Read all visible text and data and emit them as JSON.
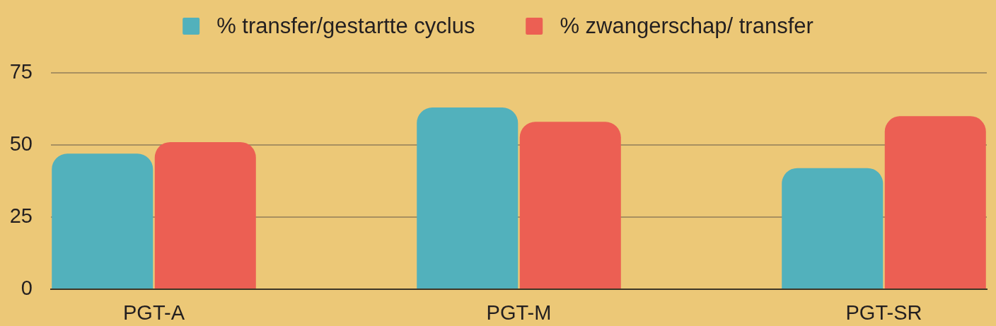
{
  "chart_data": {
    "type": "bar",
    "categories": [
      "PGT-A",
      "PGT-M",
      "PGT-SR"
    ],
    "series": [
      {
        "name": "% transfer/gestartte cyclus",
        "color": "#52b1bc",
        "values": [
          47,
          63,
          42
        ]
      },
      {
        "name": "% zwangerschap/ transfer",
        "color": "#ec5f53",
        "values": [
          51,
          58,
          60
        ]
      }
    ],
    "ylim": [
      0,
      75
    ],
    "yticks": [
      0,
      25,
      50,
      75
    ],
    "grid": "y",
    "legend": "top"
  }
}
